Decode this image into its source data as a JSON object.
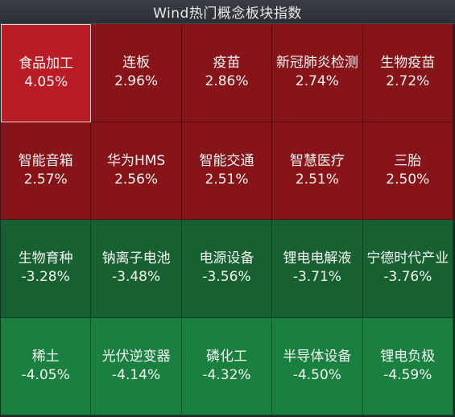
{
  "title": "Wind热门概念板块指数",
  "colors": {
    "strong_red": "#b91c24",
    "red": "#861419",
    "green": "#16612f",
    "strong_green": "#1a8040"
  },
  "tiles": [
    {
      "name": "食品加工",
      "pct": "4.05%",
      "tone": "strong_red",
      "selected": true
    },
    {
      "name": "连板",
      "pct": "2.96%",
      "tone": "red"
    },
    {
      "name": "疫苗",
      "pct": "2.86%",
      "tone": "red"
    },
    {
      "name": "新冠肺炎检测",
      "pct": "2.74%",
      "tone": "red"
    },
    {
      "name": "生物疫苗",
      "pct": "2.72%",
      "tone": "red"
    },
    {
      "name": "智能音箱",
      "pct": "2.57%",
      "tone": "red"
    },
    {
      "name": "华为HMS",
      "pct": "2.56%",
      "tone": "red"
    },
    {
      "name": "智能交通",
      "pct": "2.51%",
      "tone": "red"
    },
    {
      "name": "智慧医疗",
      "pct": "2.51%",
      "tone": "red"
    },
    {
      "name": "三胎",
      "pct": "2.50%",
      "tone": "red"
    },
    {
      "name": "生物育种",
      "pct": "-3.28%",
      "tone": "green"
    },
    {
      "name": "钠离子电池",
      "pct": "-3.48%",
      "tone": "green"
    },
    {
      "name": "电源设备",
      "pct": "-3.56%",
      "tone": "green"
    },
    {
      "name": "锂电电解液",
      "pct": "-3.71%",
      "tone": "green"
    },
    {
      "name": "宁德时代产业",
      "pct": "-3.76%",
      "tone": "green"
    },
    {
      "name": "稀土",
      "pct": "-4.05%",
      "tone": "strong_green"
    },
    {
      "name": "光伏逆变器",
      "pct": "-4.14%",
      "tone": "strong_green"
    },
    {
      "name": "磷化工",
      "pct": "-4.32%",
      "tone": "strong_green"
    },
    {
      "name": "半导体设备",
      "pct": "-4.50%",
      "tone": "strong_green"
    },
    {
      "name": "锂电负极",
      "pct": "-4.59%",
      "tone": "strong_green"
    }
  ]
}
